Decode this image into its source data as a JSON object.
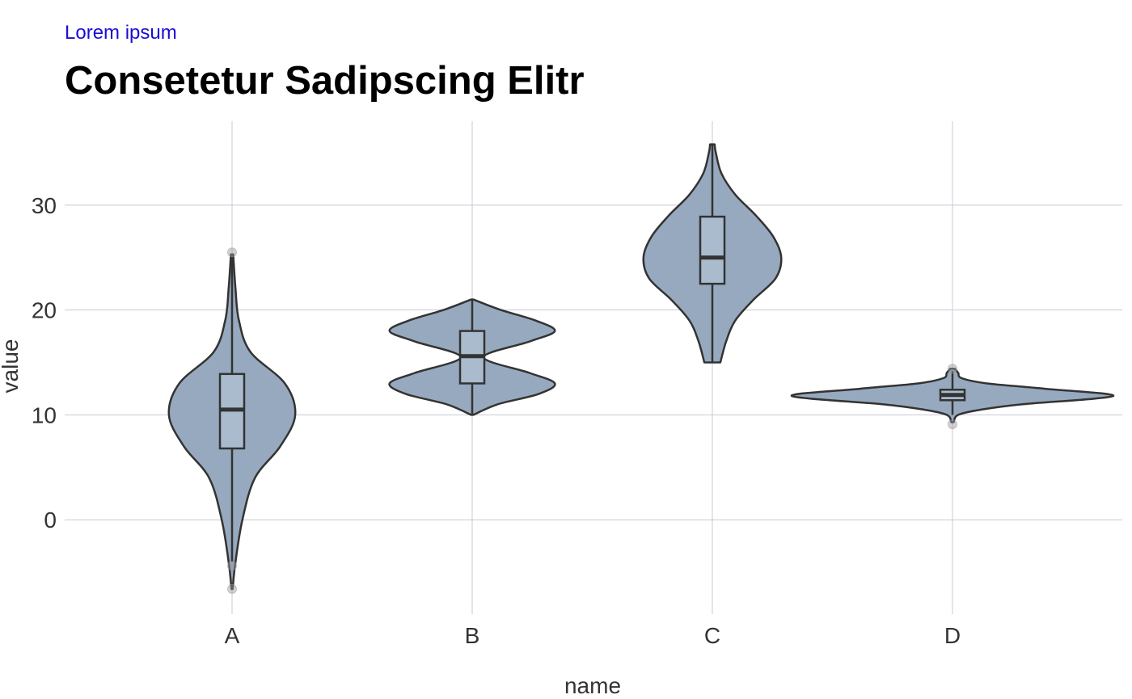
{
  "header": {
    "subtitle": "Lorem ipsum",
    "title": "Consetetur Sadipscing Elitr"
  },
  "chart_data": {
    "type": "violin",
    "title": "Consetetur Sadipscing Elitr",
    "subtitle": "Lorem ipsum",
    "xlabel": "name",
    "ylabel": "value",
    "categories": [
      "A",
      "B",
      "C",
      "D"
    ],
    "ylim": [
      -9,
      38
    ],
    "yticks": [
      0,
      10,
      20,
      30
    ],
    "grid": true,
    "colors": {
      "violin_fill": "#97a9bf",
      "box_fill": "#a9bbcc",
      "outline": "#333333",
      "grid": "#c8c8d4",
      "outlier": "#999999"
    },
    "groups": [
      {
        "name": "A",
        "box": {
          "q1": 6.8,
          "median": 10.5,
          "q3": 13.9,
          "whisker_low": -4.0,
          "whisker_high": 25.3
        },
        "outliers": [
          25.5,
          -4.4,
          -6.6
        ],
        "density": [
          [
            -6.6,
            0.005
          ],
          [
            -4.0,
            0.03
          ],
          [
            0.0,
            0.09
          ],
          [
            4.0,
            0.2
          ],
          [
            7.0,
            0.42
          ],
          [
            10.0,
            0.55
          ],
          [
            13.0,
            0.46
          ],
          [
            16.0,
            0.16
          ],
          [
            19.0,
            0.06
          ],
          [
            22.0,
            0.03
          ],
          [
            25.3,
            0.01
          ]
        ]
      },
      {
        "name": "B",
        "box": {
          "q1": 13.0,
          "median": 15.6,
          "q3": 18.0,
          "whisker_low": 10.0,
          "whisker_high": 21.0
        },
        "outliers": [],
        "density": [
          [
            10.0,
            0.01
          ],
          [
            11.0,
            0.22
          ],
          [
            12.0,
            0.58
          ],
          [
            13.0,
            0.72
          ],
          [
            14.0,
            0.5
          ],
          [
            15.5,
            0.1
          ],
          [
            17.0,
            0.5
          ],
          [
            18.0,
            0.72
          ],
          [
            19.0,
            0.55
          ],
          [
            20.0,
            0.25
          ],
          [
            21.0,
            0.01
          ]
        ]
      },
      {
        "name": "C",
        "box": {
          "q1": 22.5,
          "median": 25.0,
          "q3": 28.9,
          "whisker_low": 15.0,
          "whisker_high": 35.8
        },
        "outliers": [],
        "density": [
          [
            15.0,
            0.07
          ],
          [
            17.0,
            0.12
          ],
          [
            19.0,
            0.2
          ],
          [
            21.0,
            0.36
          ],
          [
            23.0,
            0.55
          ],
          [
            25.0,
            0.6
          ],
          [
            27.0,
            0.53
          ],
          [
            29.0,
            0.38
          ],
          [
            31.0,
            0.2
          ],
          [
            33.0,
            0.08
          ],
          [
            35.0,
            0.03
          ],
          [
            35.8,
            0.02
          ]
        ]
      },
      {
        "name": "D",
        "box": {
          "q1": 11.4,
          "median": 11.9,
          "q3": 12.4,
          "whisker_low": 10.0,
          "whisker_high": 14.2
        },
        "outliers": [
          14.4,
          9.1
        ],
        "density": [
          [
            9.3,
            0.01
          ],
          [
            10.0,
            0.05
          ],
          [
            10.5,
            0.25
          ],
          [
            11.0,
            0.6
          ],
          [
            11.8,
            1.4
          ],
          [
            12.5,
            0.8
          ],
          [
            13.0,
            0.3
          ],
          [
            13.5,
            0.08
          ],
          [
            14.0,
            0.05
          ],
          [
            14.4,
            0.02
          ]
        ]
      }
    ]
  }
}
